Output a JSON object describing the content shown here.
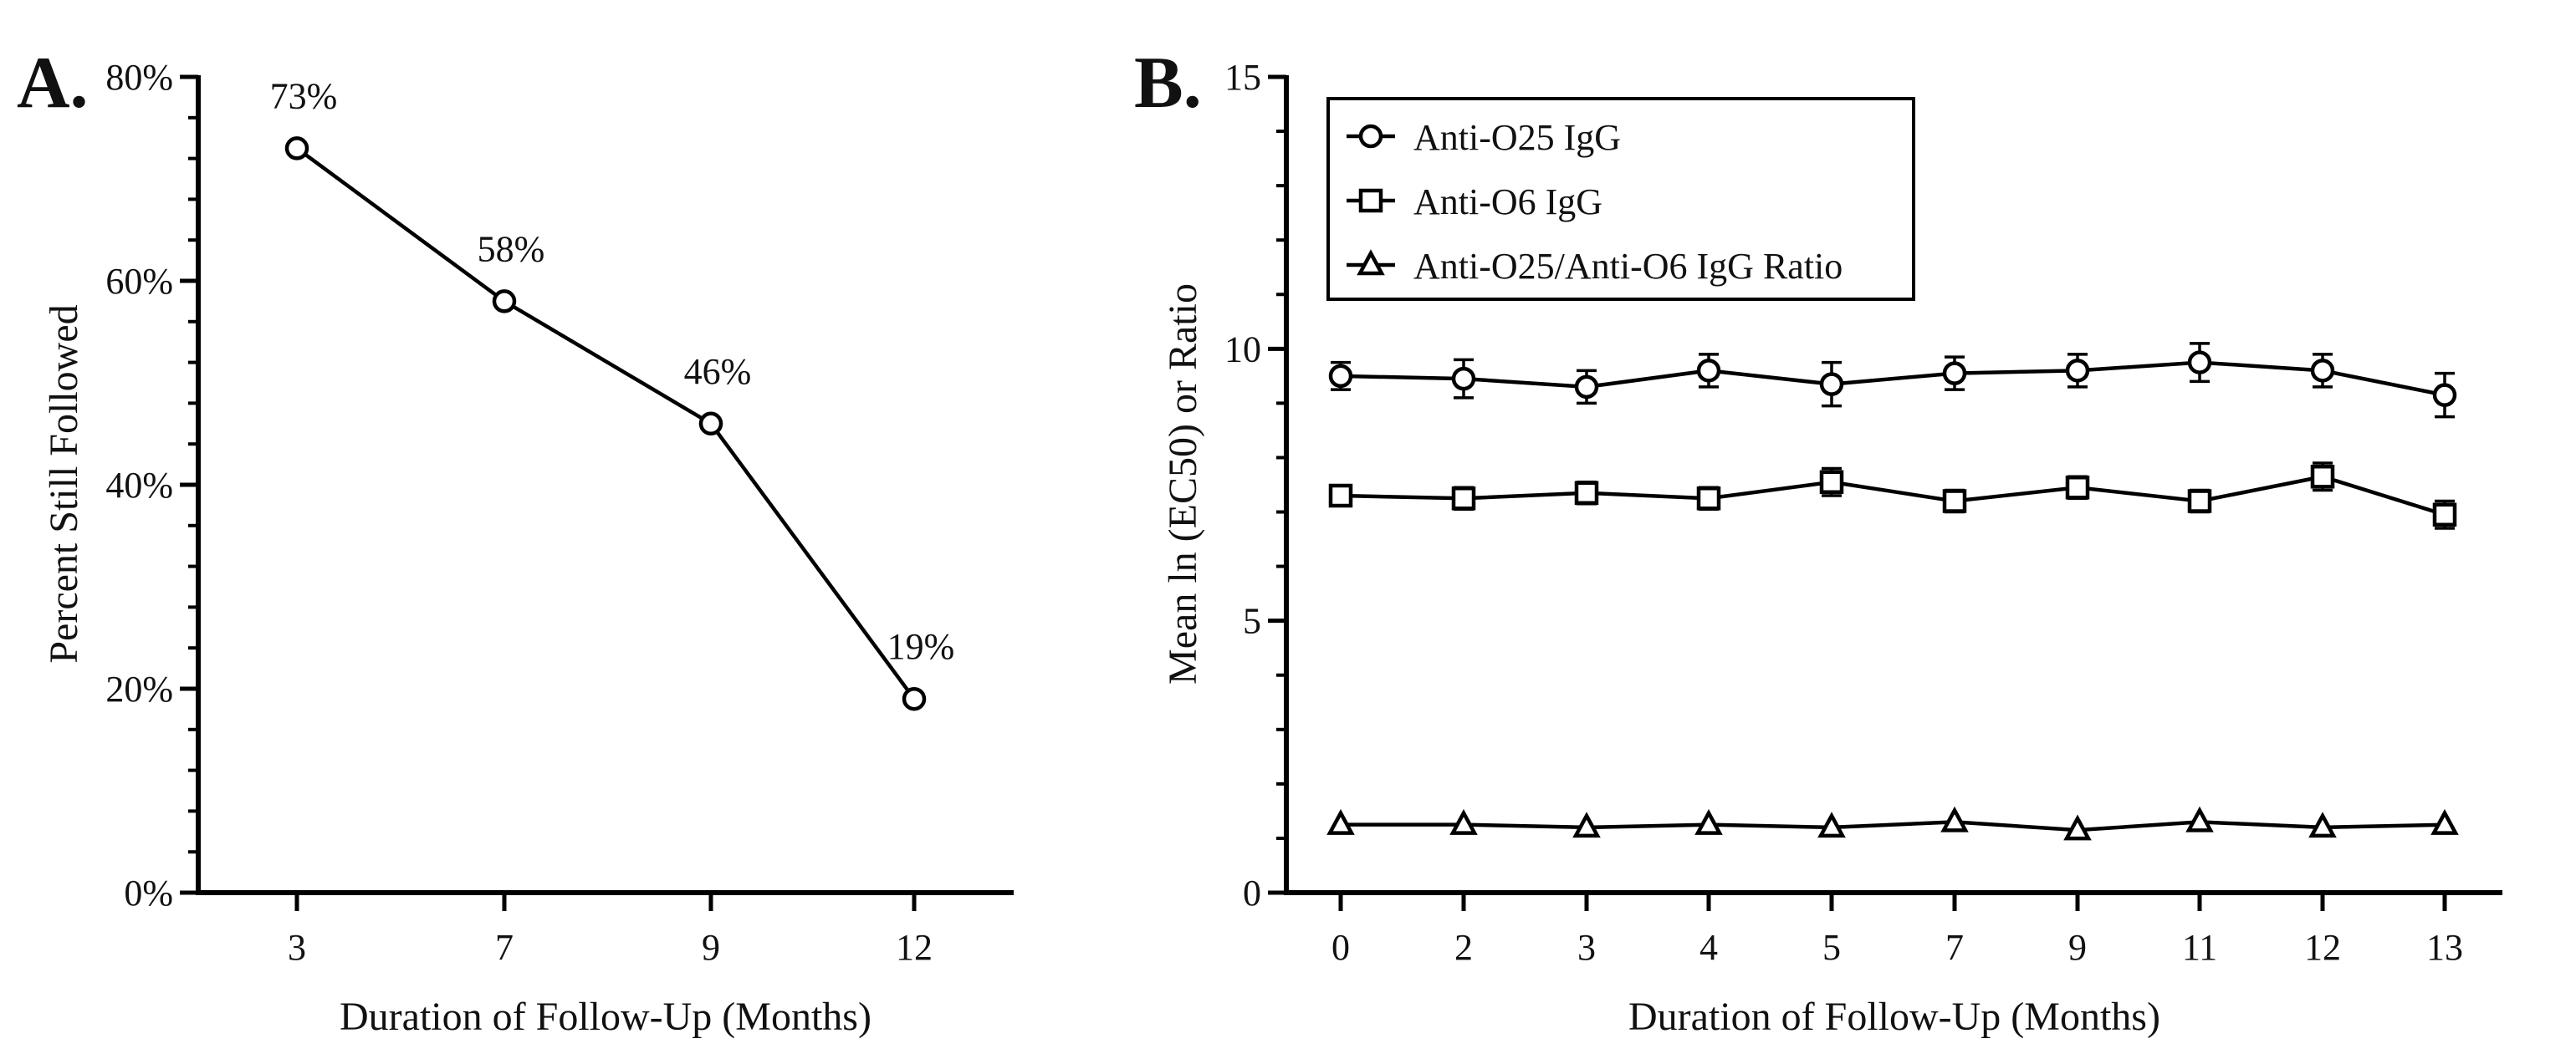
{
  "chart_data": [
    {
      "panel_label": "A.",
      "type": "line",
      "title": "",
      "xlabel": "Duration of Follow-Up (Months)",
      "ylabel": "Percent Still Followed",
      "categories": [
        "3",
        "7",
        "9",
        "12"
      ],
      "values": [
        73,
        58,
        46,
        19
      ],
      "data_labels": [
        "73%",
        "58%",
        "46%",
        "19%"
      ],
      "ylim": [
        0,
        80
      ],
      "yticks": [
        0,
        20,
        40,
        60,
        80
      ],
      "ytick_labels": [
        "0%",
        "20%",
        "40%",
        "60%",
        "80%"
      ],
      "marker": "circle",
      "legend": null
    },
    {
      "panel_label": "B.",
      "type": "line",
      "title": "",
      "xlabel": "Duration of Follow-Up (Months)",
      "ylabel": "Mean ln (EC50) or Ratio",
      "categories": [
        "0",
        "2",
        "3",
        "4",
        "5",
        "7",
        "9",
        "11",
        "12",
        "13"
      ],
      "ylim": [
        0,
        15
      ],
      "yticks": [
        0,
        5,
        10,
        15
      ],
      "ytick_labels": [
        "0",
        "5",
        "10",
        "15"
      ],
      "legend_position": "top-left",
      "series": [
        {
          "name": "Anti-O25 IgG",
          "marker": "circle",
          "values": [
            9.5,
            9.45,
            9.3,
            9.6,
            9.35,
            9.55,
            9.6,
            9.75,
            9.6,
            9.15
          ],
          "errors": [
            0.25,
            0.35,
            0.3,
            0.3,
            0.4,
            0.3,
            0.3,
            0.35,
            0.3,
            0.4
          ]
        },
        {
          "name": "Anti-O6 IgG",
          "marker": "square",
          "values": [
            7.3,
            7.25,
            7.35,
            7.25,
            7.55,
            7.2,
            7.45,
            7.2,
            7.65,
            6.95
          ],
          "errors": [
            0.15,
            0.2,
            0.2,
            0.2,
            0.25,
            0.2,
            0.2,
            0.2,
            0.25,
            0.25
          ]
        },
        {
          "name": "Anti-O25/Anti-O6 IgG Ratio",
          "marker": "triangle",
          "values": [
            1.25,
            1.25,
            1.2,
            1.25,
            1.2,
            1.3,
            1.15,
            1.3,
            1.2,
            1.25
          ],
          "errors": [
            0.03,
            0.03,
            0.03,
            0.03,
            0.03,
            0.03,
            0.03,
            0.03,
            0.03,
            0.03
          ]
        }
      ]
    }
  ]
}
